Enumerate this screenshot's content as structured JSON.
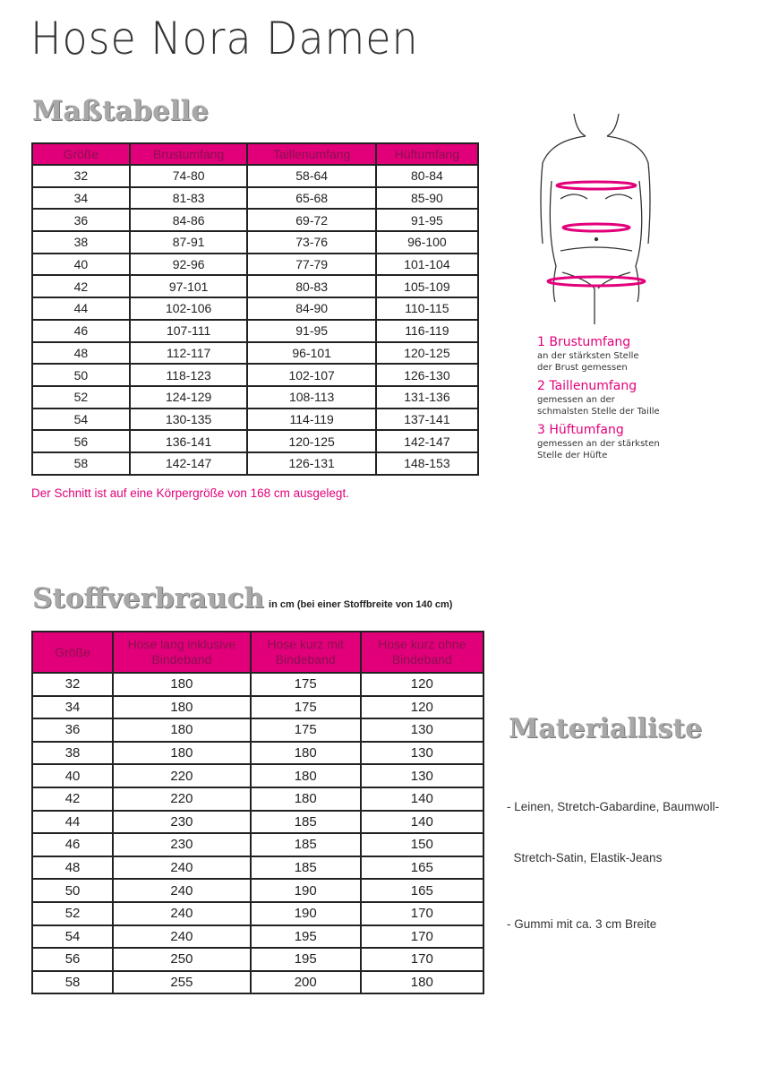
{
  "title": "Hose Nora Damen",
  "size_table": {
    "heading": "Maßtabelle",
    "columns": [
      "Größe",
      "Brustumfang",
      "Taillenumfang",
      "Hüftumfang"
    ],
    "rows": [
      [
        "32",
        "74-80",
        "58-64",
        "80-84"
      ],
      [
        "34",
        "81-83",
        "65-68",
        "85-90"
      ],
      [
        "36",
        "84-86",
        "69-72",
        "91-95"
      ],
      [
        "38",
        "87-91",
        "73-76",
        "96-100"
      ],
      [
        "40",
        "92-96",
        "77-79",
        "101-104"
      ],
      [
        "42",
        "97-101",
        "80-83",
        "105-109"
      ],
      [
        "44",
        "102-106",
        "84-90",
        "110-115"
      ],
      [
        "46",
        "107-111",
        "91-95",
        "116-119"
      ],
      [
        "48",
        "112-117",
        "96-101",
        "120-125"
      ],
      [
        "50",
        "118-123",
        "102-107",
        "126-130"
      ],
      [
        "52",
        "124-129",
        "108-113",
        "131-136"
      ],
      [
        "54",
        "130-135",
        "114-119",
        "137-141"
      ],
      [
        "56",
        "136-141",
        "120-125",
        "142-147"
      ],
      [
        "58",
        "142-147",
        "126-131",
        "148-153"
      ]
    ],
    "note": "Der Schnitt ist auf eine Körpergröße von 168 cm ausgelegt."
  },
  "legend": [
    {
      "title": "1 Brustumfang",
      "desc1": "an der stärksten Stelle",
      "desc2": "der Brust gemessen"
    },
    {
      "title": "2 Taillenumfang",
      "desc1": "gemessen an der",
      "desc2": "schmalsten Stelle der Taille"
    },
    {
      "title": "3 Hüftumfang",
      "desc1": "gemessen an der stärksten",
      "desc2": "Stelle der Hüfte"
    }
  ],
  "fabric_table": {
    "heading": "Stoffverbrauch",
    "subheading": "in cm (bei einer Stoffbreite von 140 cm)",
    "columns": [
      "Größe",
      "Hose lang inklusive Bindeband",
      "Hose kurz mit Bindeband",
      "Hose kurz ohne Bindeband"
    ],
    "rows": [
      [
        "32",
        "180",
        "175",
        "120"
      ],
      [
        "34",
        "180",
        "175",
        "120"
      ],
      [
        "36",
        "180",
        "175",
        "130"
      ],
      [
        "38",
        "180",
        "180",
        "130"
      ],
      [
        "40",
        "220",
        "180",
        "130"
      ],
      [
        "42",
        "220",
        "180",
        "140"
      ],
      [
        "44",
        "230",
        "185",
        "140"
      ],
      [
        "46",
        "230",
        "185",
        "150"
      ],
      [
        "48",
        "240",
        "185",
        "165"
      ],
      [
        "50",
        "240",
        "190",
        "165"
      ],
      [
        "52",
        "240",
        "190",
        "170"
      ],
      [
        "54",
        "240",
        "195",
        "170"
      ],
      [
        "56",
        "250",
        "195",
        "170"
      ],
      [
        "58",
        "255",
        "200",
        "180"
      ]
    ]
  },
  "materials": {
    "heading": "Materialliste",
    "items": [
      "- Leinen, Stretch-Gabardine, Baumwoll-",
      "  Stretch-Satin, Elastik-Jeans",
      "- Gummi mit ca. 3 cm Breite"
    ]
  },
  "colors": {
    "accent": "#e2007a"
  }
}
